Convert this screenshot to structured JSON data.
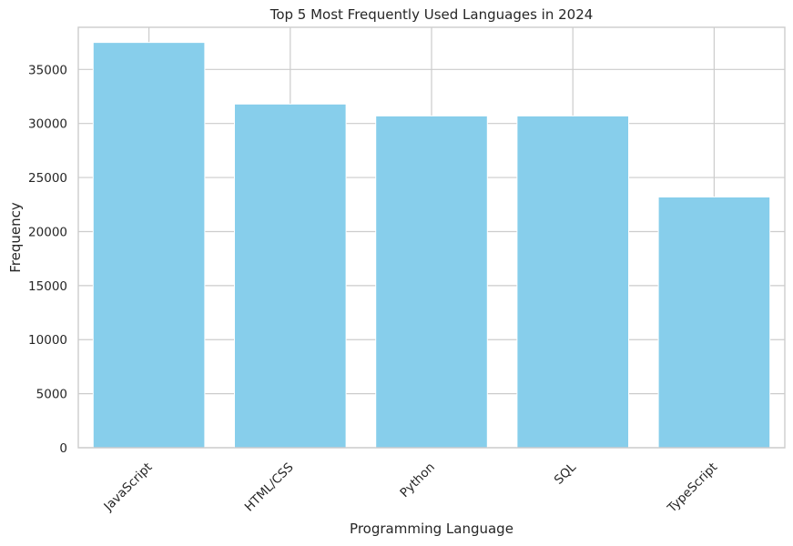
{
  "chart_data": {
    "type": "bar",
    "title": "Top 5 Most Frequently Used Languages in 2024",
    "xlabel": "Programming Language",
    "ylabel": "Frequency",
    "categories": [
      "JavaScript",
      "HTML/CSS",
      "Python",
      "SQL",
      "TypeScript"
    ],
    "values": [
      37500,
      31800,
      30700,
      30700,
      23200
    ],
    "ylim": [
      0,
      38900
    ],
    "yticks": [
      0,
      5000,
      10000,
      15000,
      20000,
      25000,
      30000,
      35000
    ],
    "bar_color": "#87ceeb",
    "grid": true,
    "xtick_rotation": 45
  }
}
